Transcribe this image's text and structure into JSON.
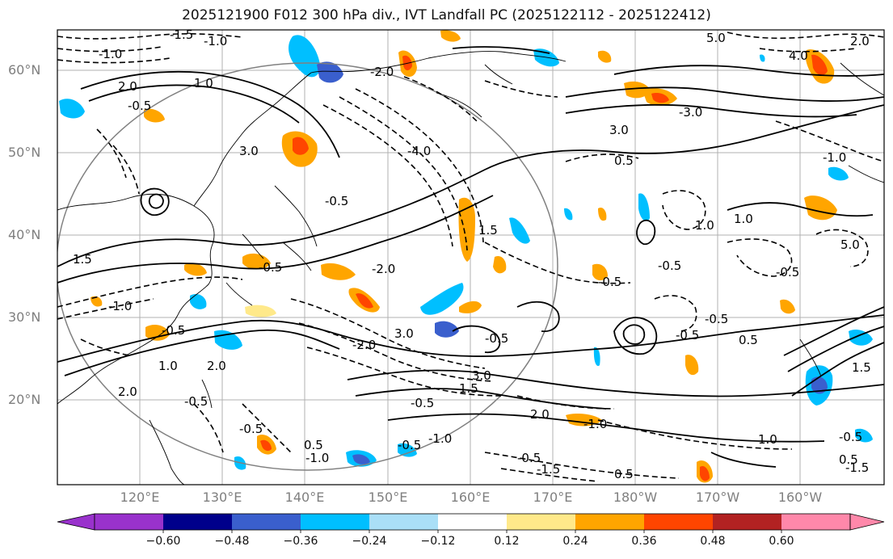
{
  "title": "2025121900 F012 300 hPa div., IVT Landfall PC (2025122112 - 2025122412)",
  "map": {
    "lat_ticks": [
      "60°N",
      "50°N",
      "40°N",
      "30°N",
      "20°N"
    ],
    "lon_ticks": [
      "120°E",
      "130°E",
      "140°E",
      "150°E",
      "160°E",
      "170°E",
      "180°W",
      "170°W",
      "160°W"
    ],
    "contour_labels": [
      "-1.5",
      "-1.0",
      "1.0",
      "-0.5",
      "2.0",
      "-2.0",
      "3.0",
      "-3.0",
      "0.5",
      "1.5",
      "-4.0",
      "5.0",
      "4.0"
    ],
    "grid": true,
    "coastline_color": "#000000",
    "range_circle_color": "#808080"
  },
  "colorbar": {
    "ticks": [
      "−0.60",
      "−0.48",
      "−0.36",
      "−0.24",
      "−0.12",
      "0.12",
      "0.24",
      "0.36",
      "0.48",
      "0.60"
    ],
    "colors": [
      "#9932cc",
      "#00008b",
      "#3a5fcd",
      "#00bfff",
      "#aadff7",
      "#ffffff",
      "#ffe98a",
      "#ffa500",
      "#ff4500",
      "#b22222",
      "#ff88aa"
    ]
  }
}
